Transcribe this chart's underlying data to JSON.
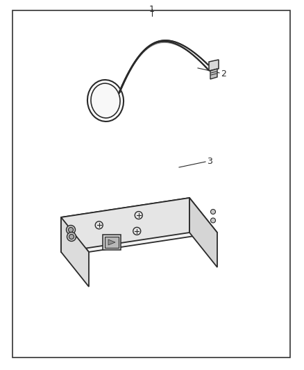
{
  "title": "1",
  "label_2": "2",
  "label_3": "3",
  "bg_color": "#ffffff",
  "line_color": "#2a2a2a",
  "border_color": "#333333",
  "fig_width": 4.38,
  "fig_height": 5.33,
  "dpi": 100
}
